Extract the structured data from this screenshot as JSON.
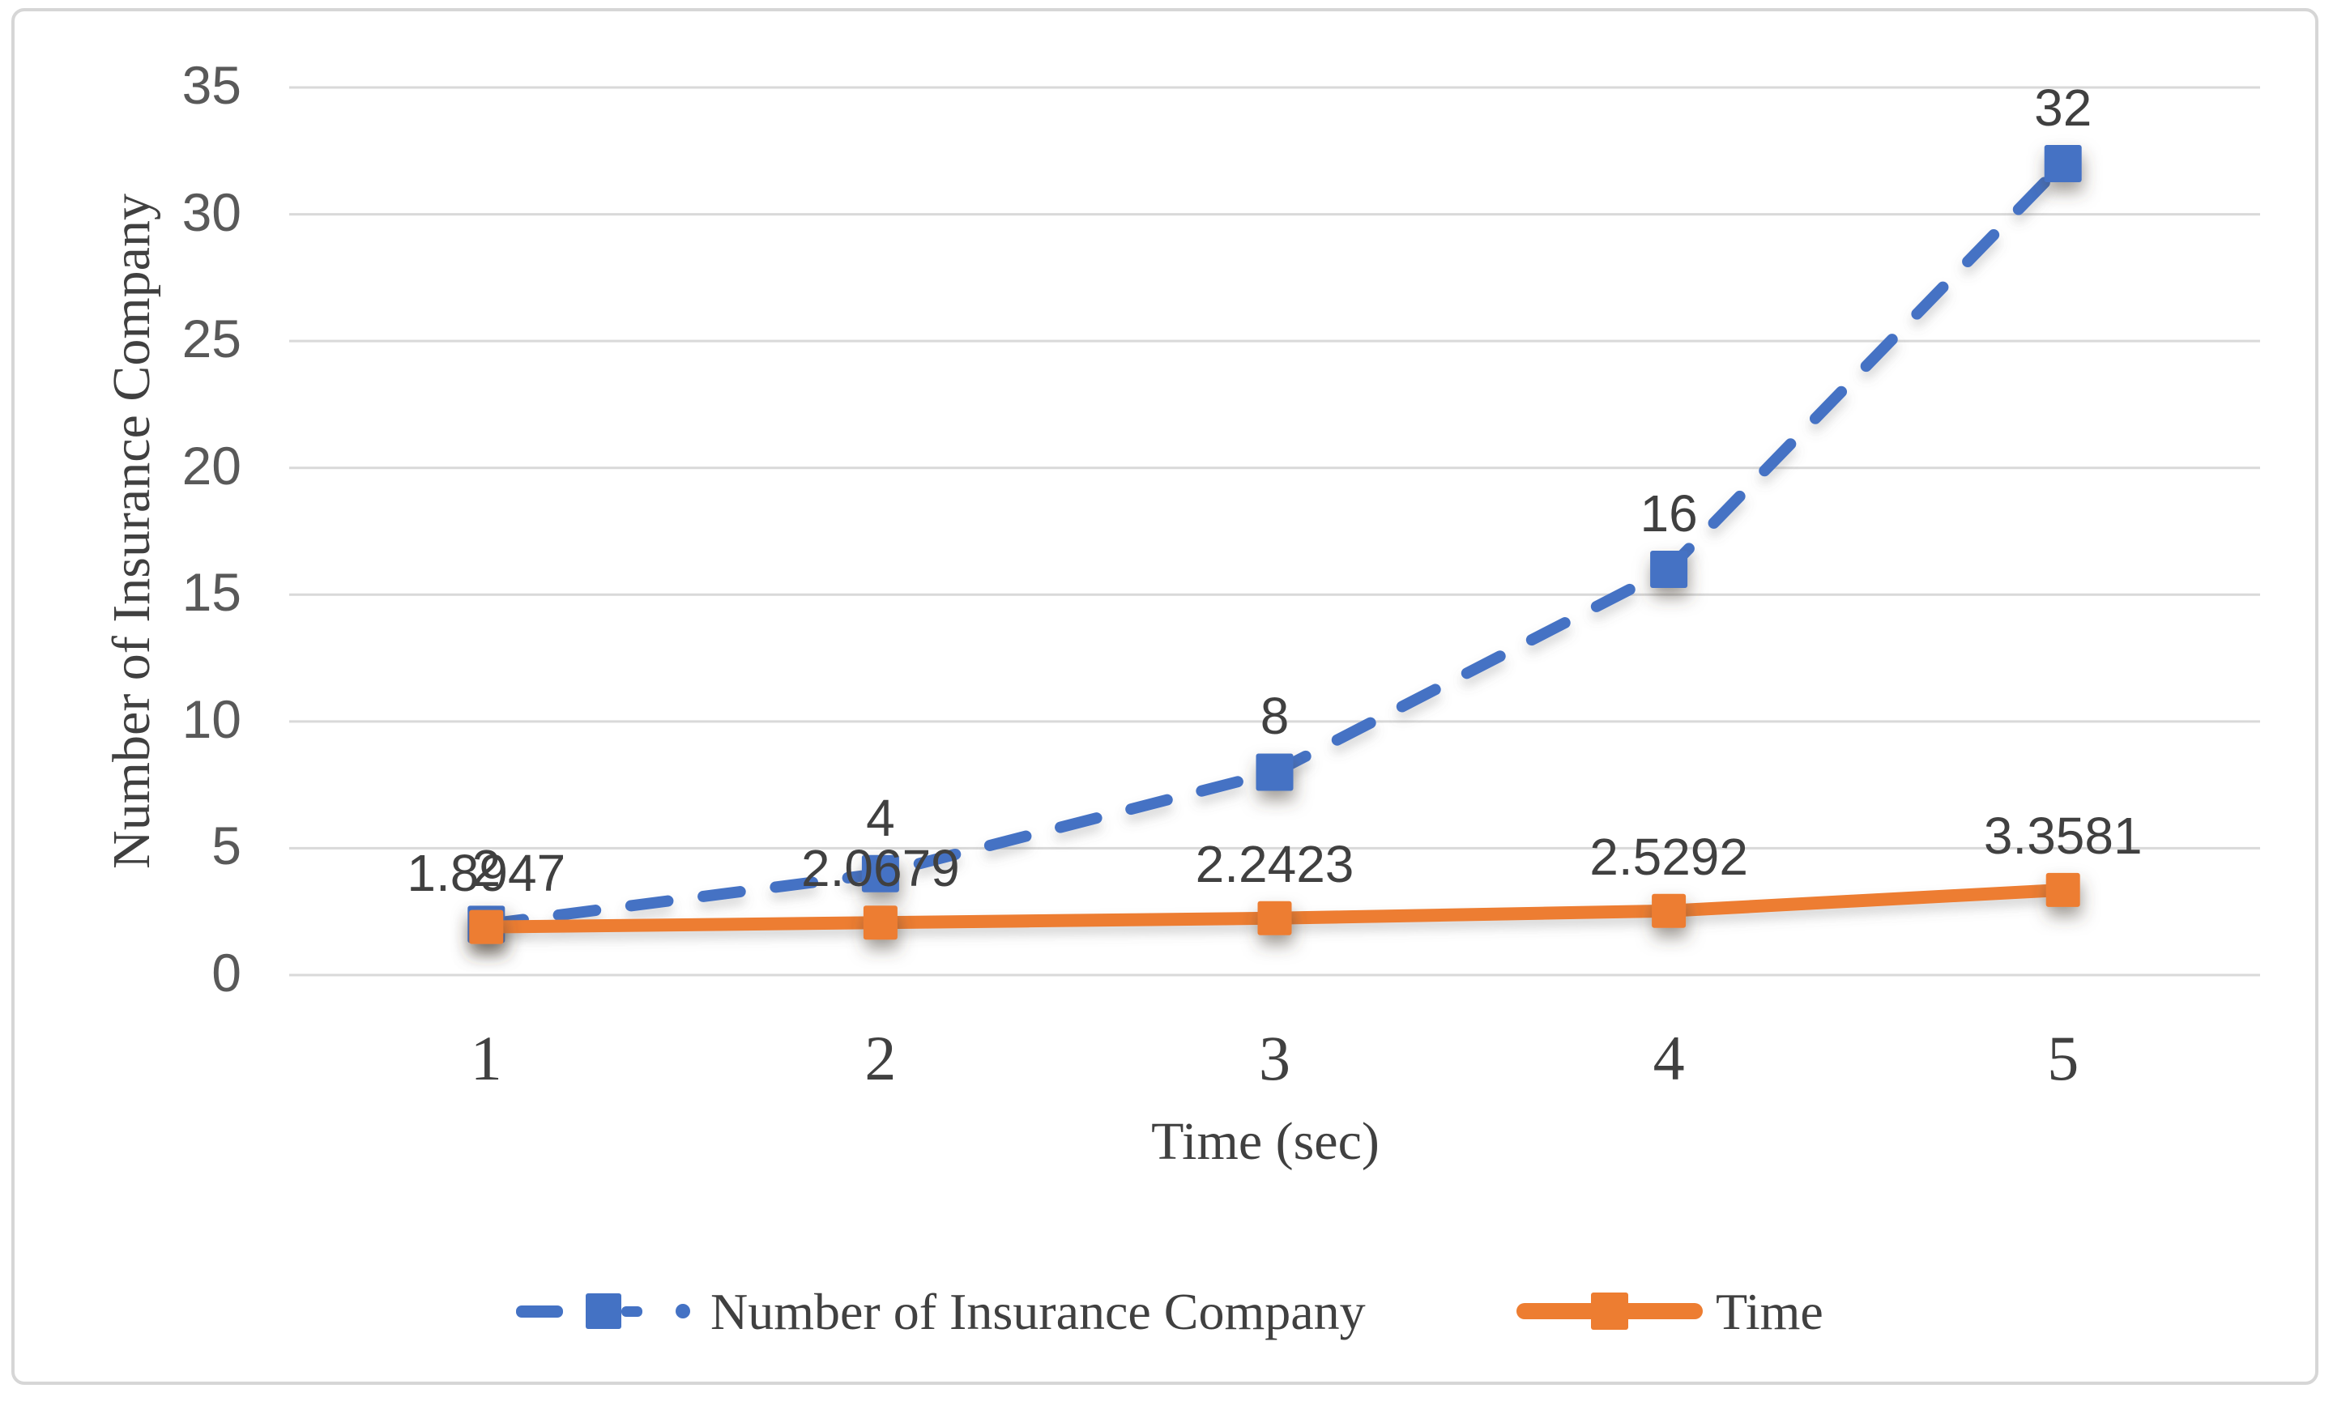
{
  "chart_data": {
    "type": "line",
    "xlabel": "Time (sec)",
    "ylabel": "Number of Insurance Company",
    "x_categories": [
      "1",
      "2",
      "3",
      "4",
      "5"
    ],
    "ylim": [
      0,
      35
    ],
    "ytick_step": 5,
    "ytick_labels": [
      "0",
      "5",
      "10",
      "15",
      "20",
      "25",
      "30",
      "35"
    ],
    "grid": "horizontal",
    "legend_position": "bottom",
    "series": [
      {
        "name": "Number of Insurance Company",
        "color": "#4472C4",
        "line_style": "dashed",
        "marker": "square",
        "values": [
          2,
          4,
          8,
          16,
          32
        ],
        "data_labels": [
          "2",
          "4",
          "8",
          "16",
          "32"
        ]
      },
      {
        "name": "Time",
        "color": "#ED7D31",
        "line_style": "solid",
        "marker": "square",
        "values": [
          1.8947,
          2.0679,
          2.2423,
          2.5292,
          3.3581
        ],
        "data_labels": [
          "1.8947",
          "2.0679",
          "2.2423",
          "2.5292",
          "3.3581"
        ]
      }
    ]
  },
  "axes": {
    "x_title": "Time (sec)",
    "y_title": "Number of Insurance Company"
  },
  "colors": {
    "blue_series": "#4472C4",
    "orange_series": "#ED7D31",
    "gridline": "#D9D9D9",
    "tick_text": "#595959",
    "label_text": "#404040"
  }
}
